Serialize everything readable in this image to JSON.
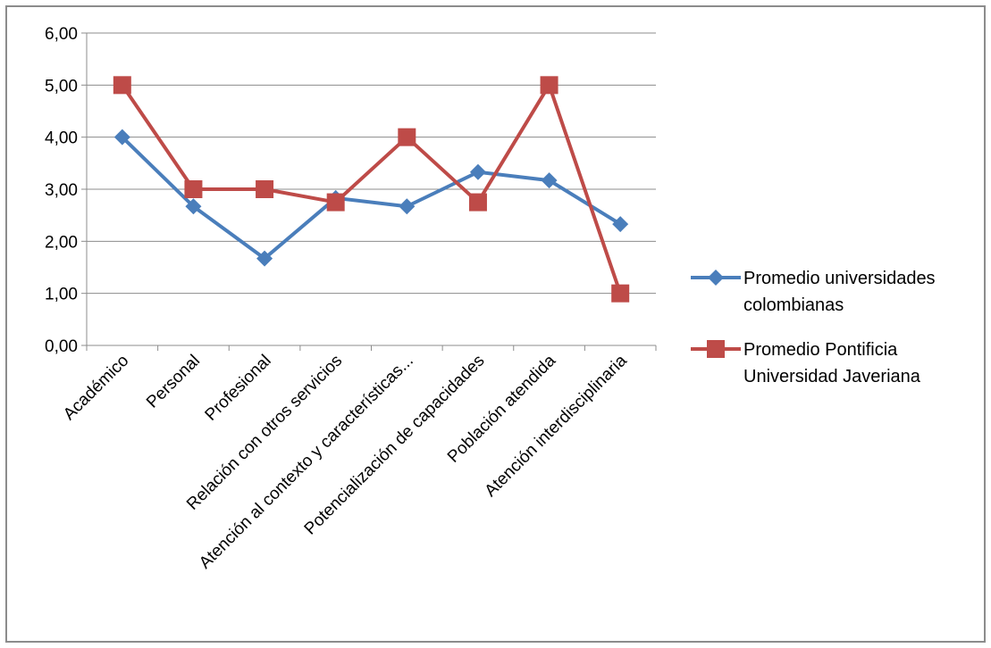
{
  "chart_data": {
    "type": "line",
    "title": "",
    "xlabel": "",
    "ylabel": "",
    "categories": [
      "Académico",
      "Personal",
      "Profesional",
      "Relación con otros servicios",
      "Atención al contexto y características...",
      "Potencialización de capacidades",
      "Población atendida",
      "Atención interdisciplinaria"
    ],
    "y_ticks": [
      "0,00",
      "1,00",
      "2,00",
      "3,00",
      "4,00",
      "5,00",
      "6,00"
    ],
    "ylim": [
      0,
      6
    ],
    "grid": true,
    "legend_position": "right",
    "series": [
      {
        "name_lines": [
          "Promedio universidades",
          "colombianas"
        ],
        "values": [
          4.0,
          2.67,
          1.67,
          2.83,
          2.67,
          3.33,
          3.17,
          2.33
        ],
        "color": "#4a7ebb",
        "marker": "diamond"
      },
      {
        "name_lines": [
          "Promedio Pontificia",
          "Universidad Javeriana"
        ],
        "values": [
          5.0,
          3.0,
          3.0,
          2.75,
          4.0,
          2.75,
          5.0,
          1.0
        ],
        "color": "#be4b48",
        "marker": "square"
      }
    ]
  }
}
